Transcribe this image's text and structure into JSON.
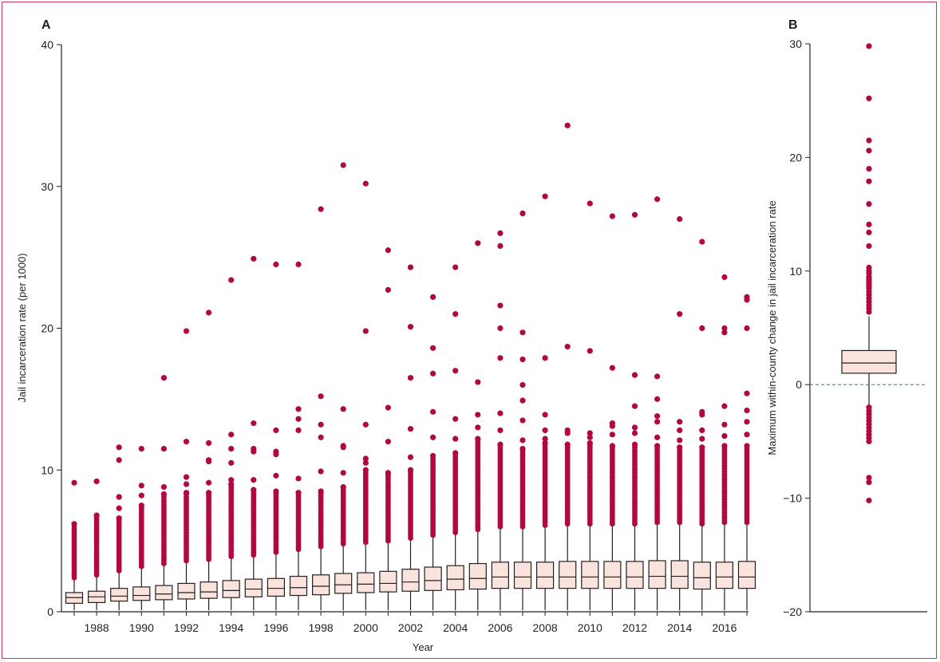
{
  "colors": {
    "point": "#b0083f",
    "box_fill": "#fbe3dd",
    "axis": "#231f20",
    "zero_line": "#4f6f86",
    "frame": "#c8326e"
  },
  "chart_data": [
    {
      "panel_label": "A",
      "type": "box",
      "xlabel": "Year",
      "ylabel": "Jail incarceration rate (per 1000)",
      "ylim": [
        0,
        40
      ],
      "yticks": [
        "0",
        "10",
        "20",
        "30",
        "40"
      ],
      "years": [
        1987,
        1988,
        1989,
        1990,
        1991,
        1992,
        1993,
        1994,
        1995,
        1996,
        1997,
        1998,
        1999,
        2000,
        2001,
        2002,
        2003,
        2004,
        2005,
        2006,
        2007,
        2008,
        2009,
        2010,
        2011,
        2012,
        2013,
        2014,
        2015,
        2016,
        2017
      ],
      "xtick_labels": [
        "1988",
        "1990",
        "1992",
        "1994",
        "1996",
        "1998",
        "2000",
        "2002",
        "2004",
        "2006",
        "2008",
        "2010",
        "2012",
        "2014",
        "2016"
      ],
      "xtick_years": [
        1988,
        1990,
        1992,
        1994,
        1996,
        1998,
        2000,
        2002,
        2004,
        2006,
        2008,
        2010,
        2012,
        2014,
        2016
      ],
      "boxes": [
        {
          "year": 1987,
          "whislo": 0.1,
          "q1": 0.6,
          "med": 1.0,
          "q3": 1.35,
          "whishi": 2.4
        },
        {
          "year": 1988,
          "whislo": 0.1,
          "q1": 0.65,
          "med": 1.05,
          "q3": 1.45,
          "whishi": 2.6
        },
        {
          "year": 1989,
          "whislo": 0.1,
          "q1": 0.75,
          "med": 1.1,
          "q3": 1.65,
          "whishi": 2.9
        },
        {
          "year": 1990,
          "whislo": 0.1,
          "q1": 0.8,
          "med": 1.15,
          "q3": 1.75,
          "whishi": 3.2
        },
        {
          "year": 1991,
          "whislo": 0.1,
          "q1": 0.85,
          "med": 1.25,
          "q3": 1.85,
          "whishi": 3.4
        },
        {
          "year": 1992,
          "whislo": 0.1,
          "q1": 0.9,
          "med": 1.35,
          "q3": 2.0,
          "whishi": 3.6
        },
        {
          "year": 1993,
          "whislo": 0.1,
          "q1": 0.95,
          "med": 1.4,
          "q3": 2.1,
          "whishi": 3.7
        },
        {
          "year": 1994,
          "whislo": 0.1,
          "q1": 1.0,
          "med": 1.5,
          "q3": 2.2,
          "whishi": 3.9
        },
        {
          "year": 1995,
          "whislo": 0.1,
          "q1": 1.05,
          "med": 1.6,
          "q3": 2.3,
          "whishi": 4.0
        },
        {
          "year": 1996,
          "whislo": 0.1,
          "q1": 1.1,
          "med": 1.65,
          "q3": 2.35,
          "whishi": 4.2
        },
        {
          "year": 1997,
          "whislo": 0.1,
          "q1": 1.15,
          "med": 1.7,
          "q3": 2.5,
          "whishi": 4.4
        },
        {
          "year": 1998,
          "whislo": 0.1,
          "q1": 1.2,
          "med": 1.8,
          "q3": 2.6,
          "whishi": 4.6
        },
        {
          "year": 1999,
          "whislo": 0.1,
          "q1": 1.3,
          "med": 1.9,
          "q3": 2.7,
          "whishi": 4.8
        },
        {
          "year": 2000,
          "whislo": 0.1,
          "q1": 1.35,
          "med": 1.95,
          "q3": 2.75,
          "whishi": 4.9
        },
        {
          "year": 2001,
          "whislo": 0.1,
          "q1": 1.4,
          "med": 2.0,
          "q3": 2.85,
          "whishi": 5.0
        },
        {
          "year": 2002,
          "whislo": 0.1,
          "q1": 1.45,
          "med": 2.1,
          "q3": 3.0,
          "whishi": 5.2
        },
        {
          "year": 2003,
          "whislo": 0.1,
          "q1": 1.5,
          "med": 2.2,
          "q3": 3.15,
          "whishi": 5.4
        },
        {
          "year": 2004,
          "whislo": 0.1,
          "q1": 1.55,
          "med": 2.3,
          "q3": 3.25,
          "whishi": 5.6
        },
        {
          "year": 2005,
          "whislo": 0.1,
          "q1": 1.6,
          "med": 2.35,
          "q3": 3.4,
          "whishi": 5.8
        },
        {
          "year": 2006,
          "whislo": 0.1,
          "q1": 1.65,
          "med": 2.45,
          "q3": 3.5,
          "whishi": 6.0
        },
        {
          "year": 2007,
          "whislo": 0.1,
          "q1": 1.65,
          "med": 2.45,
          "q3": 3.5,
          "whishi": 6.0
        },
        {
          "year": 2008,
          "whislo": 0.1,
          "q1": 1.65,
          "med": 2.45,
          "q3": 3.5,
          "whishi": 6.1
        },
        {
          "year": 2009,
          "whislo": 0.1,
          "q1": 1.65,
          "med": 2.45,
          "q3": 3.55,
          "whishi": 6.2
        },
        {
          "year": 2010,
          "whislo": 0.1,
          "q1": 1.65,
          "med": 2.45,
          "q3": 3.55,
          "whishi": 6.2
        },
        {
          "year": 2011,
          "whislo": 0.1,
          "q1": 1.65,
          "med": 2.45,
          "q3": 3.55,
          "whishi": 6.2
        },
        {
          "year": 2012,
          "whislo": 0.1,
          "q1": 1.65,
          "med": 2.45,
          "q3": 3.55,
          "whishi": 6.2
        },
        {
          "year": 2013,
          "whislo": 0.1,
          "q1": 1.65,
          "med": 2.5,
          "q3": 3.6,
          "whishi": 6.3
        },
        {
          "year": 2014,
          "whislo": 0.1,
          "q1": 1.65,
          "med": 2.5,
          "q3": 3.6,
          "whishi": 6.3
        },
        {
          "year": 2015,
          "whislo": 0.1,
          "q1": 1.6,
          "med": 2.4,
          "q3": 3.5,
          "whishi": 6.2
        },
        {
          "year": 2016,
          "whislo": 0.1,
          "q1": 1.65,
          "med": 2.45,
          "q3": 3.5,
          "whishi": 6.3
        },
        {
          "year": 2017,
          "whislo": 0.1,
          "q1": 1.65,
          "med": 2.45,
          "q3": 3.55,
          "whishi": 6.3
        }
      ],
      "outliers": [
        {
          "year": 1987,
          "values": [
            9.1,
            6.2
          ]
        },
        {
          "year": 1988,
          "values": [
            9.2,
            6.8
          ]
        },
        {
          "year": 1989,
          "values": [
            11.6,
            10.7,
            8.1,
            7.3,
            6.6
          ]
        },
        {
          "year": 1990,
          "values": [
            11.5,
            8.9,
            8.2,
            7.5
          ]
        },
        {
          "year": 1991,
          "values": [
            16.5,
            11.5,
            8.8,
            8.3
          ]
        },
        {
          "year": 1992,
          "values": [
            19.8,
            12.0,
            9.5,
            9.0,
            8.4
          ]
        },
        {
          "year": 1993,
          "values": [
            21.1,
            11.9,
            10.7,
            10.6,
            9.1,
            8.4
          ]
        },
        {
          "year": 1994,
          "values": [
            23.4,
            12.5,
            11.5,
            10.5,
            9.3,
            9.0
          ]
        },
        {
          "year": 1995,
          "values": [
            24.9,
            13.3,
            11.5,
            11.3,
            9.3,
            8.6
          ]
        },
        {
          "year": 1996,
          "values": [
            24.5,
            12.8,
            11.3,
            11.1,
            9.6,
            8.5
          ]
        },
        {
          "year": 1997,
          "values": [
            24.5,
            14.3,
            13.6,
            12.8,
            9.4,
            8.4
          ]
        },
        {
          "year": 1998,
          "values": [
            28.4,
            15.2,
            13.2,
            12.3,
            9.9,
            8.5
          ]
        },
        {
          "year": 1999,
          "values": [
            31.5,
            14.3,
            11.7,
            11.6,
            9.8,
            8.8
          ]
        },
        {
          "year": 2000,
          "values": [
            30.2,
            19.8,
            13.2,
            10.8,
            10.5,
            10.0
          ]
        },
        {
          "year": 2001,
          "values": [
            25.5,
            22.7,
            14.4,
            12.0,
            9.8
          ]
        },
        {
          "year": 2002,
          "values": [
            24.3,
            20.1,
            16.5,
            12.9,
            10.9,
            10.0
          ]
        },
        {
          "year": 2003,
          "values": [
            22.2,
            18.6,
            16.8,
            14.1,
            12.3,
            11.0
          ]
        },
        {
          "year": 2004,
          "values": [
            24.3,
            21.0,
            17.0,
            13.6,
            12.2,
            11.2
          ]
        },
        {
          "year": 2005,
          "values": [
            26.0,
            16.2,
            13.9,
            13.0,
            12.2
          ]
        },
        {
          "year": 2006,
          "values": [
            26.7,
            25.8,
            21.6,
            20.0,
            17.9,
            14.0,
            12.8,
            11.8
          ]
        },
        {
          "year": 2007,
          "values": [
            28.1,
            19.7,
            17.8,
            16.0,
            14.9,
            13.5,
            12.1,
            11.5
          ]
        },
        {
          "year": 2008,
          "values": [
            29.3,
            17.9,
            13.9,
            12.8,
            12.2,
            11.9
          ]
        },
        {
          "year": 2009,
          "values": [
            34.3,
            18.7,
            12.8,
            12.6,
            11.8
          ]
        },
        {
          "year": 2010,
          "values": [
            28.8,
            18.4,
            12.6,
            12.3,
            11.9
          ]
        },
        {
          "year": 2011,
          "values": [
            27.9,
            17.2,
            13.3,
            13.1,
            12.5,
            11.7
          ]
        },
        {
          "year": 2012,
          "values": [
            28.0,
            16.7,
            14.5,
            13.0,
            12.6,
            11.8
          ]
        },
        {
          "year": 2013,
          "values": [
            29.1,
            16.6,
            15.0,
            13.8,
            13.4,
            12.3,
            11.7
          ]
        },
        {
          "year": 2014,
          "values": [
            27.7,
            21.0,
            13.4,
            12.8,
            12.1,
            11.6
          ]
        },
        {
          "year": 2015,
          "values": [
            26.1,
            20.0,
            14.1,
            13.9,
            12.8,
            12.2,
            11.6
          ]
        },
        {
          "year": 2016,
          "values": [
            23.6,
            20.0,
            19.7,
            14.5,
            13.2,
            12.4,
            11.7
          ]
        },
        {
          "year": 2017,
          "values": [
            22.2,
            22.0,
            20.0,
            15.4,
            14.2,
            13.4,
            12.5,
            11.7
          ]
        }
      ],
      "grid": false
    },
    {
      "panel_label": "B",
      "type": "box",
      "ylabel": "Maximum within-county change in jail incarceration rate",
      "ylim": [
        -20,
        30
      ],
      "yticks": [
        "-20",
        "-10",
        "0",
        "10",
        "20",
        "30"
      ],
      "reference_line": 0,
      "box": {
        "whislo": -2.0,
        "q1": 1.0,
        "med": 1.9,
        "q3": 3.0,
        "whishi": 6.0
      },
      "outliers": [
        29.8,
        25.2,
        21.5,
        20.6,
        19.0,
        17.9,
        15.9,
        14.1,
        13.4,
        12.2,
        10.3,
        10.0,
        9.8,
        9.5,
        9.3,
        9.1,
        8.9,
        8.7,
        8.5,
        8.2,
        7.9,
        7.6,
        7.3,
        7.0,
        6.7,
        6.4,
        -2.0,
        -2.3,
        -2.6,
        -2.9,
        -3.2,
        -3.5,
        -3.8,
        -4.1,
        -4.4,
        -4.7,
        -5.0,
        -8.2,
        -8.6,
        -10.2
      ],
      "grid": false
    }
  ]
}
